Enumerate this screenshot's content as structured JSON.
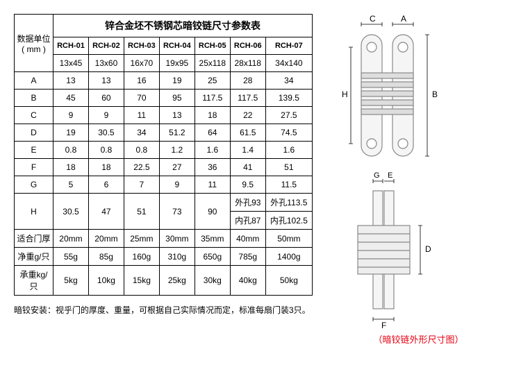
{
  "title": "锌合金坯不锈钢芯暗铰链尺寸参数表",
  "unitLabel1": "数据单位",
  "unitLabel2": "( mm )",
  "models": [
    "RCH-01",
    "RCH-02",
    "RCH-03",
    "RCH-04",
    "RCH-05",
    "RCH-06",
    "RCH-07"
  ],
  "sizes": [
    "13x45",
    "13x60",
    "16x70",
    "19x95",
    "25x118",
    "28x118",
    "34x140"
  ],
  "rows": [
    {
      "label": "A",
      "vals": [
        "13",
        "13",
        "16",
        "19",
        "25",
        "28",
        "34"
      ]
    },
    {
      "label": "B",
      "vals": [
        "45",
        "60",
        "70",
        "95",
        "117.5",
        "117.5",
        "139.5"
      ]
    },
    {
      "label": "C",
      "vals": [
        "9",
        "9",
        "11",
        "13",
        "18",
        "22",
        "27.5"
      ]
    },
    {
      "label": "D",
      "vals": [
        "19",
        "30.5",
        "34",
        "51.2",
        "64",
        "61.5",
        "74.5"
      ]
    },
    {
      "label": "E",
      "vals": [
        "0.8",
        "0.8",
        "0.8",
        "1.2",
        "1.6",
        "1.4",
        "1.6"
      ]
    },
    {
      "label": "F",
      "vals": [
        "18",
        "18",
        "22.5",
        "27",
        "36",
        "41",
        "51"
      ]
    },
    {
      "label": "G",
      "vals": [
        "5",
        "6",
        "7",
        "9",
        "11",
        "9.5",
        "11.5"
      ]
    }
  ],
  "hRow": {
    "label": "H",
    "vals": [
      "30.5",
      "47",
      "51",
      "73",
      "90"
    ],
    "v6a": "外孔93",
    "v6b": "内孔87",
    "v7a": "外孔113.5",
    "v7b": "内孔102.5"
  },
  "extra": [
    {
      "label": "适合门厚",
      "vals": [
        "20mm",
        "20mm",
        "25mm",
        "30mm",
        "35mm",
        "40mm",
        "50mm"
      ]
    },
    {
      "label": "净重g/只",
      "vals": [
        "55g",
        "85g",
        "160g",
        "310g",
        "650g",
        "785g",
        "1400g"
      ]
    },
    {
      "label": "承重kg/只",
      "vals": [
        "5kg",
        "10kg",
        "15kg",
        "25kg",
        "30kg",
        "40kg",
        "50kg"
      ]
    }
  ],
  "note": "暗铰安装：视乎门的厚度、重量，可根据自己实际情况而定，标准每扇门装3只。",
  "caption": "（暗铰链外形尺寸图）",
  "dims": {
    "A": "A",
    "B": "B",
    "C": "C",
    "D": "D",
    "E": "E",
    "F": "F",
    "G": "G",
    "H": "H"
  }
}
